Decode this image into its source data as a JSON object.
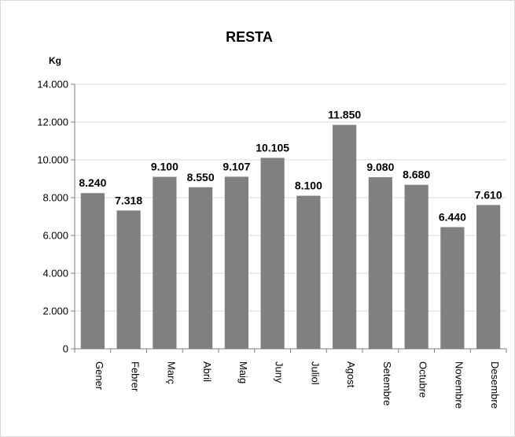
{
  "chart_data": {
    "type": "bar",
    "title": "RESTA",
    "xlabel": "",
    "ylabel": "Kg",
    "ylim": [
      0,
      14000
    ],
    "yticks": [
      0,
      2000,
      4000,
      6000,
      8000,
      10000,
      12000,
      14000
    ],
    "ytick_labels": [
      "0",
      "2.000",
      "4.000",
      "6.000",
      "8.000",
      "10.000",
      "12.000",
      "14.000"
    ],
    "categories": [
      "Gener",
      "Febrer",
      "Març",
      "Abril",
      "Maig",
      "Juny",
      "Juliol",
      "Agost",
      "Setembre",
      "Octubre",
      "Novembre",
      "Desembre"
    ],
    "values": [
      8240,
      7318,
      9100,
      8550,
      9107,
      10105,
      8100,
      11850,
      9080,
      8680,
      6440,
      7610
    ],
    "data_labels": [
      "8.240",
      "7.318",
      "9.100",
      "8.550",
      "9.107",
      "10.105",
      "8.100",
      "11.850",
      "9.080",
      "8.680",
      "6.440",
      "7.610"
    ],
    "grid": true,
    "legend": "none",
    "bar_color": "#808080",
    "grid_color": "#d9d9d9",
    "axis_color": "#7f7f7f"
  }
}
